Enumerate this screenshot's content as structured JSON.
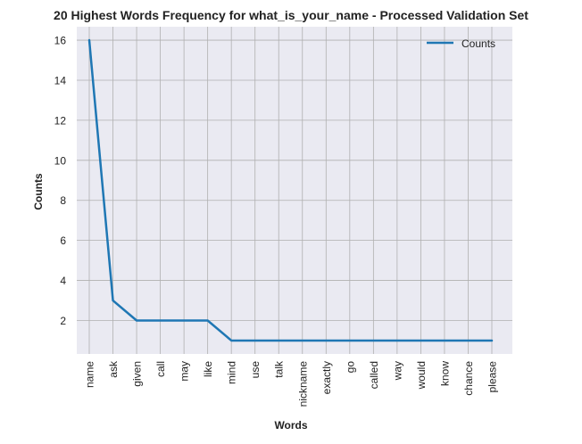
{
  "chart_data": {
    "type": "line",
    "title": "20 Highest Words Frequency for what_is_your_name - Processed Validation Set",
    "xlabel": "Words",
    "ylabel": "Counts",
    "categories": [
      "name",
      "ask",
      "given",
      "call",
      "may",
      "like",
      "mind",
      "use",
      "talk",
      "nickname",
      "exactly",
      "go",
      "called",
      "way",
      "would",
      "know",
      "chance",
      "please"
    ],
    "series": [
      {
        "name": "Counts",
        "values": [
          16,
          3,
          2,
          2,
          2,
          2,
          1,
          1,
          1,
          1,
          1,
          1,
          1,
          1,
          1,
          1,
          1,
          1
        ]
      }
    ],
    "ylim": [
      0.33,
      16.67
    ],
    "yticks": [
      2,
      4,
      6,
      8,
      10,
      12,
      14,
      16
    ],
    "grid": true,
    "legend_position": "top-right",
    "colors": {
      "line": "#1f77b4",
      "plot_bg": "#eaeaf2",
      "grid": "#b0b0b0"
    }
  }
}
